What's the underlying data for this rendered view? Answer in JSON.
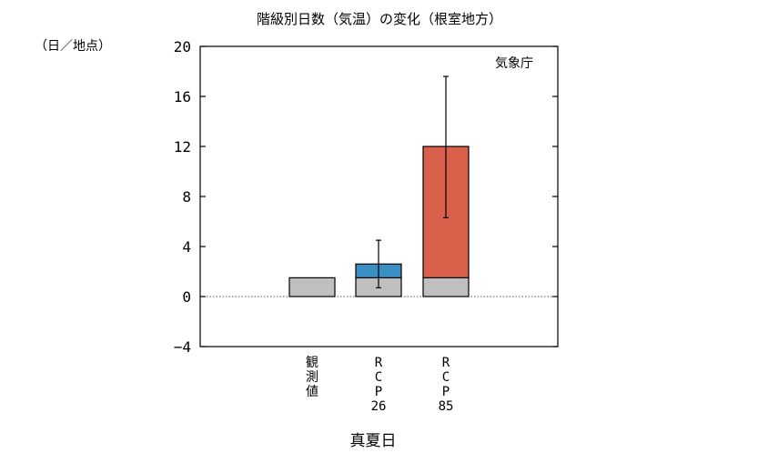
{
  "chart_data": {
    "type": "bar",
    "title": "階級別日数（気温）の変化（根室地方）",
    "unit_label": "（日／地点）",
    "source_label": "気象庁",
    "xlabel": "真夏日",
    "ylim": [
      -4,
      20
    ],
    "yticks": [
      -4,
      0,
      4,
      8,
      12,
      16,
      20
    ],
    "grid": false,
    "zero_line": "dotted",
    "categories": [
      {
        "label_lines": [
          "観",
          "測",
          "値"
        ]
      },
      {
        "label_lines": [
          "R",
          "C",
          "P",
          "26"
        ]
      },
      {
        "label_lines": [
          "R",
          "C",
          "P",
          "85"
        ]
      }
    ],
    "bars": [
      {
        "base": 1.5,
        "change": null,
        "total": 1.5,
        "error": null
      },
      {
        "base": 1.5,
        "change": 1.1,
        "total": 2.6,
        "error": [
          0.7,
          4.5
        ]
      },
      {
        "base": 1.5,
        "change": 10.5,
        "total": 12.0,
        "error": [
          6.3,
          17.6
        ]
      }
    ],
    "colors": {
      "base": "#bfbfbf",
      "rcp26": "#3a8fc4",
      "rcp85": "#d9614c",
      "axis": "#000000"
    }
  }
}
